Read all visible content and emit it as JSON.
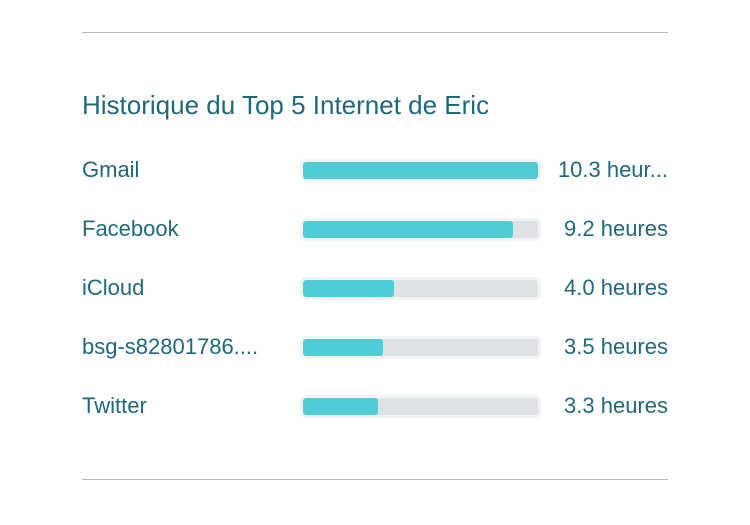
{
  "title": "Historique du Top 5 Internet de Eric",
  "colors": {
    "text": "#1f6a7a",
    "bar_fill": "#4fccd6",
    "bar_track": "#dde2e4",
    "divider": "#b8b8b8"
  },
  "rows": [
    {
      "name": "Gmail",
      "value_label": "10.3 heur...",
      "hours": 10.3
    },
    {
      "name": "Facebook",
      "value_label": "9.2 heures",
      "hours": 9.2
    },
    {
      "name": "iCloud",
      "value_label": "4.0 heures",
      "hours": 4.0
    },
    {
      "name": "bsg-s82801786....",
      "value_label": "3.5 heures",
      "hours": 3.5
    },
    {
      "name": "Twitter",
      "value_label": "3.3 heures",
      "hours": 3.3
    }
  ]
}
